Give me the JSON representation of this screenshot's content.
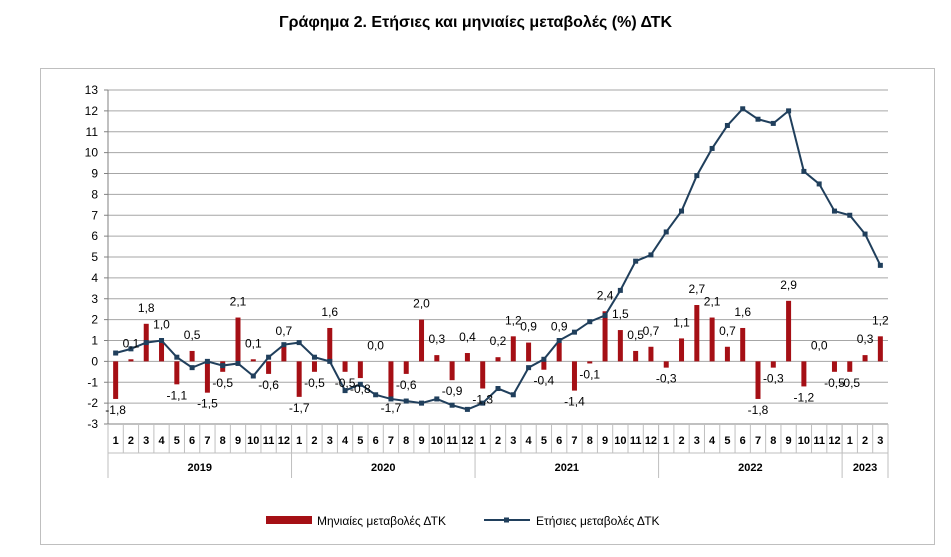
{
  "chart_data": {
    "type": "bar+line",
    "title": "Γράφημα 2. Ετήσιες και μηνιαίες μεταβολές (%) ΔΤΚ",
    "ylim": [
      -3,
      13
    ],
    "yticks": [
      -3,
      -2,
      -1,
      0,
      1,
      2,
      3,
      4,
      5,
      6,
      7,
      8,
      9,
      10,
      11,
      12,
      13
    ],
    "grid": true,
    "legend_placement": "bottom",
    "years": [
      {
        "label": "2019",
        "months": 12
      },
      {
        "label": "2020",
        "months": 12
      },
      {
        "label": "2021",
        "months": 12
      },
      {
        "label": "2022",
        "months": 12
      },
      {
        "label": "2023",
        "months": 3
      }
    ],
    "categories": [
      "1",
      "2",
      "3",
      "4",
      "5",
      "6",
      "7",
      "8",
      "9",
      "10",
      "11",
      "12",
      "1",
      "2",
      "3",
      "4",
      "5",
      "6",
      "7",
      "8",
      "9",
      "10",
      "11",
      "12",
      "1",
      "2",
      "3",
      "4",
      "5",
      "6",
      "7",
      "8",
      "9",
      "10",
      "11",
      "12",
      "1",
      "2",
      "3",
      "4",
      "5",
      "6",
      "7",
      "8",
      "9",
      "10",
      "11",
      "12",
      "1",
      "2",
      "3"
    ],
    "series": [
      {
        "name": "Μηνιαίες μεταβολές ΔΤΚ",
        "type": "bar",
        "color": "#a50f15",
        "values": [
          -1.8,
          0.1,
          1.8,
          1.0,
          -1.1,
          0.5,
          -1.5,
          -0.5,
          2.1,
          0.1,
          -0.6,
          0.7,
          -1.7,
          -0.5,
          1.6,
          -0.5,
          -0.8,
          0.0,
          -1.7,
          -0.6,
          2.0,
          0.3,
          -0.9,
          0.4,
          -1.3,
          0.2,
          1.2,
          0.9,
          -0.4,
          0.9,
          -1.4,
          -0.1,
          2.4,
          1.5,
          0.5,
          0.7,
          -0.3,
          1.1,
          2.7,
          2.1,
          0.7,
          1.6,
          -1.8,
          -0.3,
          2.9,
          -1.2,
          0.0,
          -0.5,
          -0.5,
          0.3,
          1.2
        ],
        "labels": [
          "-1,8",
          "0,1",
          "1,8",
          "1,0",
          "-1,1",
          "0,5",
          "-1,5",
          "-0,5",
          "2,1",
          "0,1",
          "-0,6",
          "0,7",
          "-1,7",
          "-0,5",
          "1,6",
          "-0,5",
          "-0,8",
          "0,0",
          "-1,7",
          "-0,6",
          "2,0",
          "0,3",
          "-0,9",
          "0,4",
          "-1,3",
          "0,2",
          "1,2",
          "0,9",
          "-0,4",
          "0,9",
          "-1,4",
          "-0,1",
          "2,4",
          "1,5",
          "0,5",
          "0,7",
          "-0,3",
          "1,1",
          "2,7",
          "2,1",
          "0,7",
          "1,6",
          "-1,8",
          "-0,3",
          "2,9",
          "-1,2",
          "0,0",
          "-0,5",
          "-0,5",
          "0,3",
          "1,2"
        ]
      },
      {
        "name": "Ετήσιες μεταβολές ΔΤΚ",
        "type": "line",
        "color": "#203f5c",
        "values": [
          0.4,
          0.6,
          0.9,
          1.0,
          0.2,
          -0.3,
          0.0,
          -0.2,
          -0.1,
          -0.7,
          0.2,
          0.8,
          0.9,
          0.2,
          0.0,
          -1.4,
          -1.1,
          -1.6,
          -1.8,
          -1.9,
          -2.0,
          -1.8,
          -2.1,
          -2.3,
          -2.0,
          -1.3,
          -1.6,
          -0.3,
          0.1,
          1.0,
          1.4,
          1.9,
          2.2,
          3.4,
          4.8,
          5.1,
          6.2,
          7.2,
          8.9,
          10.2,
          11.3,
          12.1,
          11.6,
          11.4,
          12.0,
          9.1,
          8.5,
          7.2,
          7.0,
          6.1,
          4.6
        ]
      }
    ]
  }
}
